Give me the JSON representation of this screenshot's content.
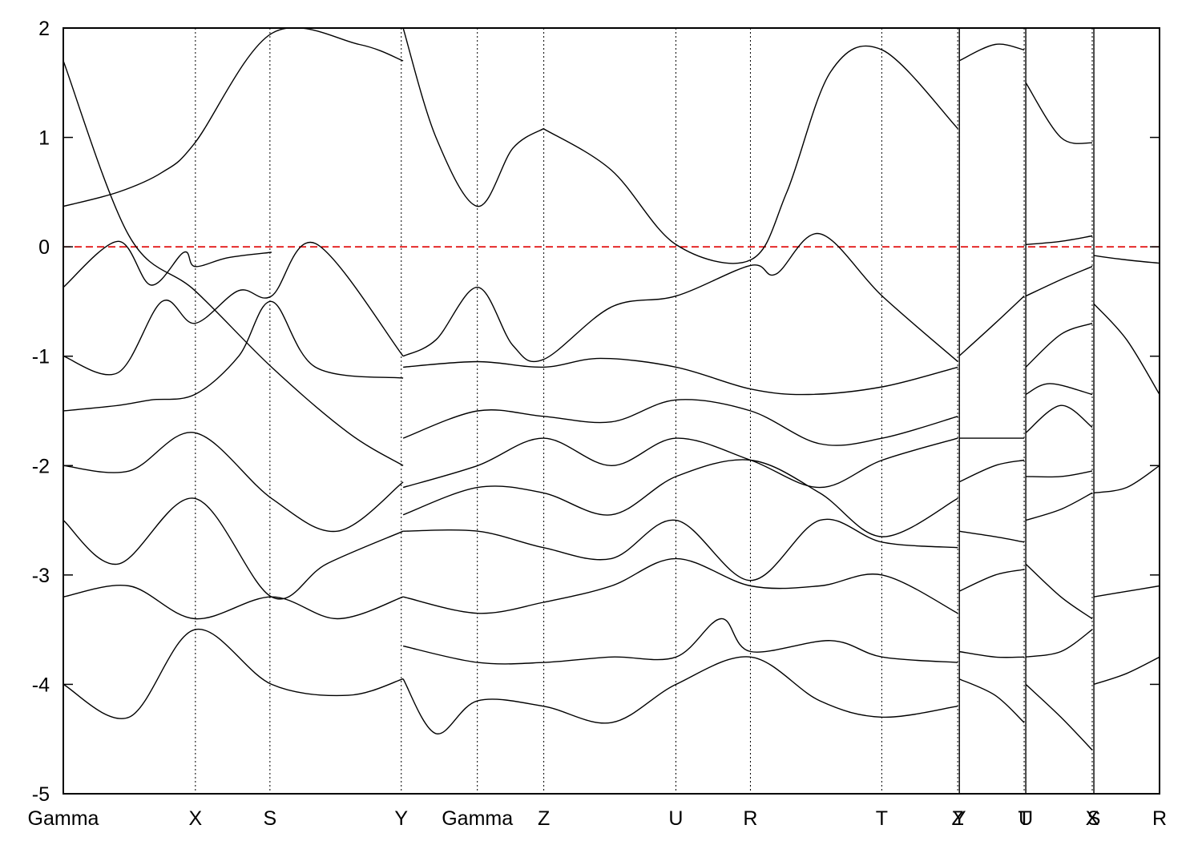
{
  "chart_data": {
    "type": "line",
    "title": "",
    "xlabel": "",
    "ylabel": "",
    "ylim": [
      -5,
      2
    ],
    "grid": "vertical dotted lines at high-symmetry points",
    "legend": "none",
    "fermi_level": {
      "value": 0,
      "color": "#e00000",
      "style": "dashed"
    },
    "y_ticks": [
      {
        "value": 2,
        "label": "2"
      },
      {
        "value": 1,
        "label": "1"
      },
      {
        "value": 0,
        "label": "0"
      },
      {
        "value": -1,
        "label": "-1"
      },
      {
        "value": -2,
        "label": "-2"
      },
      {
        "value": -3,
        "label": "-3"
      },
      {
        "value": -4,
        "label": "-4"
      },
      {
        "value": -5,
        "label": "-5"
      }
    ],
    "k_points": [
      {
        "label": "Gamma",
        "k": 0.0
      },
      {
        "label": "X",
        "k": 0.1205
      },
      {
        "label": "S",
        "k": 0.1885
      },
      {
        "label": "Y",
        "k": 0.3083
      },
      {
        "label": "Gamma",
        "k": 0.3777
      },
      {
        "label": "Z",
        "k": 0.4383
      },
      {
        "label": "U",
        "k": 0.5588
      },
      {
        "label": "R",
        "k": 0.6268
      },
      {
        "label": "T",
        "k": 0.7466
      },
      {
        "label": "Z",
        "k": 0.8159
      },
      {
        "label": "Y",
        "k": 0.8174
      },
      {
        "label": "T",
        "k": 0.8765
      },
      {
        "label": "U",
        "k": 0.878
      },
      {
        "label": "X",
        "k": 0.9386
      },
      {
        "label": "S",
        "k": 0.9401
      },
      {
        "label": "R",
        "k": 1.0
      }
    ],
    "segments": [
      {
        "path": "Gamma-X-S-Y-Gamma-Z-U-R-T-Z",
        "k_range": [
          0.0,
          0.8159
        ]
      },
      {
        "path": "Y-T",
        "k_range": [
          0.8174,
          0.8765
        ]
      },
      {
        "path": "U-X",
        "k_range": [
          0.878,
          0.9386
        ]
      },
      {
        "path": "S-R",
        "k_range": [
          0.9401,
          1.0
        ]
      }
    ],
    "series": [
      {
        "k": [
          0.0,
          0.06,
          0.12,
          0.19,
          0.26,
          0.31
        ],
        "energy": [
          1.7,
          0.1,
          -0.4,
          -1.1,
          -1.7,
          -2.0
        ]
      },
      {
        "k": [
          0.0,
          0.05,
          0.09,
          0.12,
          0.19,
          0.27,
          0.31
        ],
        "energy": [
          0.37,
          0.5,
          0.68,
          0.95,
          1.95,
          1.85,
          1.7
        ]
      },
      {
        "k": [
          0.0,
          0.05,
          0.08,
          0.11,
          0.12,
          0.15,
          0.19
        ],
        "energy": [
          -0.37,
          0.05,
          -0.35,
          -0.05,
          -0.18,
          -0.1,
          -0.05
        ]
      },
      {
        "k": [
          0.0,
          0.05,
          0.09,
          0.12,
          0.16,
          0.19,
          0.23,
          0.31
        ],
        "energy": [
          -1.0,
          -1.15,
          -0.5,
          -0.7,
          -0.4,
          -0.45,
          0.03,
          -1.0
        ]
      },
      {
        "k": [
          0.0,
          0.05,
          0.08,
          0.12,
          0.16,
          0.19,
          0.23,
          0.31
        ],
        "energy": [
          -1.5,
          -1.45,
          -1.4,
          -1.35,
          -1.0,
          -0.5,
          -1.1,
          -1.2
        ]
      },
      {
        "k": [
          0.0,
          0.06,
          0.12,
          0.19,
          0.25,
          0.31
        ],
        "energy": [
          -2.0,
          -2.05,
          -1.7,
          -2.3,
          -2.6,
          -2.15
        ]
      },
      {
        "k": [
          0.0,
          0.05,
          0.12,
          0.19,
          0.24,
          0.31
        ],
        "energy": [
          -2.5,
          -2.9,
          -2.3,
          -3.2,
          -2.9,
          -2.6
        ]
      },
      {
        "k": [
          0.0,
          0.06,
          0.12,
          0.19,
          0.25,
          0.31
        ],
        "energy": [
          -3.2,
          -3.1,
          -3.4,
          -3.2,
          -3.4,
          -3.2
        ]
      },
      {
        "k": [
          0.0,
          0.06,
          0.12,
          0.19,
          0.26,
          0.31
        ],
        "energy": [
          -4.0,
          -4.3,
          -3.5,
          -4.0,
          -4.1,
          -3.95
        ]
      },
      {
        "k": [
          0.31,
          0.34,
          0.378,
          0.41,
          0.438
        ],
        "energy": [
          2.0,
          1.0,
          0.37,
          0.9,
          1.08
        ]
      },
      {
        "k": [
          0.31,
          0.34,
          0.378,
          0.41,
          0.438,
          0.5,
          0.559,
          0.627,
          0.65,
          0.69,
          0.747,
          0.816
        ],
        "energy": [
          -1.0,
          -0.85,
          -0.37,
          -0.9,
          -1.03,
          -0.55,
          -0.45,
          -0.17,
          -0.25,
          0.12,
          -0.45,
          -1.05
        ]
      },
      {
        "k": [
          0.438,
          0.5,
          0.559,
          0.627,
          0.66,
          0.7,
          0.747,
          0.816
        ],
        "energy": [
          1.08,
          0.7,
          0.02,
          -0.12,
          0.5,
          1.6,
          1.8,
          1.08
        ]
      },
      {
        "k": [
          0.31,
          0.378,
          0.438,
          0.49,
          0.559,
          0.627,
          0.68,
          0.747,
          0.816
        ],
        "energy": [
          -1.1,
          -1.05,
          -1.1,
          -1.02,
          -1.1,
          -1.3,
          -1.35,
          -1.28,
          -1.1
        ]
      },
      {
        "k": [
          0.31,
          0.378,
          0.438,
          0.5,
          0.559,
          0.627,
          0.69,
          0.747,
          0.816
        ],
        "energy": [
          -1.75,
          -1.5,
          -1.55,
          -1.6,
          -1.4,
          -1.5,
          -1.8,
          -1.75,
          -1.55
        ]
      },
      {
        "k": [
          0.31,
          0.378,
          0.438,
          0.5,
          0.559,
          0.627,
          0.69,
          0.747,
          0.816
        ],
        "energy": [
          -2.2,
          -2.0,
          -1.75,
          -2.0,
          -1.75,
          -1.95,
          -2.2,
          -1.95,
          -1.75
        ]
      },
      {
        "k": [
          0.31,
          0.378,
          0.438,
          0.5,
          0.559,
          0.627,
          0.69,
          0.747,
          0.816
        ],
        "energy": [
          -2.45,
          -2.2,
          -2.25,
          -2.45,
          -2.1,
          -1.95,
          -2.25,
          -2.65,
          -2.3
        ]
      },
      {
        "k": [
          0.31,
          0.378,
          0.438,
          0.5,
          0.559,
          0.627,
          0.69,
          0.747,
          0.816
        ],
        "energy": [
          -2.6,
          -2.6,
          -2.75,
          -2.85,
          -2.5,
          -3.05,
          -2.5,
          -2.7,
          -2.75
        ]
      },
      {
        "k": [
          0.31,
          0.378,
          0.438,
          0.5,
          0.559,
          0.627,
          0.69,
          0.747,
          0.816
        ],
        "energy": [
          -3.2,
          -3.35,
          -3.25,
          -3.1,
          -2.85,
          -3.1,
          -3.1,
          -3.0,
          -3.35
        ]
      },
      {
        "k": [
          0.31,
          0.378,
          0.438,
          0.5,
          0.559,
          0.6,
          0.627,
          0.7,
          0.747,
          0.816
        ],
        "energy": [
          -3.65,
          -3.8,
          -3.8,
          -3.75,
          -3.75,
          -3.4,
          -3.7,
          -3.6,
          -3.75,
          -3.8
        ]
      },
      {
        "k": [
          0.31,
          0.34,
          0.378,
          0.438,
          0.5,
          0.559,
          0.627,
          0.69,
          0.747,
          0.816
        ],
        "energy": [
          -3.95,
          -4.45,
          -4.15,
          -4.2,
          -4.35,
          -4.0,
          -3.75,
          -4.15,
          -4.3,
          -4.2
        ]
      },
      {
        "k": [
          0.817,
          0.85,
          0.8765
        ],
        "energy": [
          1.7,
          1.85,
          1.8
        ]
      },
      {
        "k": [
          0.817,
          0.85,
          0.8765
        ],
        "energy": [
          -1.0,
          -0.7,
          -0.45
        ]
      },
      {
        "k": [
          0.817,
          0.85,
          0.8765
        ],
        "energy": [
          -1.75,
          -1.75,
          -1.75
        ]
      },
      {
        "k": [
          0.817,
          0.85,
          0.8765
        ],
        "energy": [
          -2.15,
          -2.0,
          -1.95
        ]
      },
      {
        "k": [
          0.817,
          0.85,
          0.8765
        ],
        "energy": [
          -2.6,
          -2.65,
          -2.7
        ]
      },
      {
        "k": [
          0.817,
          0.85,
          0.8765
        ],
        "energy": [
          -3.15,
          -3.0,
          -2.95
        ]
      },
      {
        "k": [
          0.817,
          0.85,
          0.8765
        ],
        "energy": [
          -3.7,
          -3.75,
          -3.75
        ]
      },
      {
        "k": [
          0.817,
          0.85,
          0.8765
        ],
        "energy": [
          -3.95,
          -4.1,
          -4.35
        ]
      },
      {
        "k": [
          0.878,
          0.91,
          0.9386
        ],
        "energy": [
          1.5,
          1.0,
          0.95
        ]
      },
      {
        "k": [
          0.878,
          0.91,
          0.9386
        ],
        "energy": [
          0.02,
          0.05,
          0.1
        ]
      },
      {
        "k": [
          0.878,
          0.91,
          0.9386
        ],
        "energy": [
          -0.45,
          -0.3,
          -0.18
        ]
      },
      {
        "k": [
          0.878,
          0.91,
          0.9386
        ],
        "energy": [
          -1.1,
          -0.8,
          -0.7
        ]
      },
      {
        "k": [
          0.878,
          0.9,
          0.9386
        ],
        "energy": [
          -1.35,
          -1.25,
          -1.35
        ]
      },
      {
        "k": [
          0.878,
          0.91,
          0.9386
        ],
        "energy": [
          -1.7,
          -1.45,
          -1.65
        ]
      },
      {
        "k": [
          0.878,
          0.91,
          0.9386
        ],
        "energy": [
          -2.1,
          -2.1,
          -2.05
        ]
      },
      {
        "k": [
          0.878,
          0.91,
          0.9386
        ],
        "energy": [
          -2.5,
          -2.4,
          -2.25
        ]
      },
      {
        "k": [
          0.878,
          0.91,
          0.9386
        ],
        "energy": [
          -2.9,
          -3.2,
          -3.4
        ]
      },
      {
        "k": [
          0.878,
          0.91,
          0.9386
        ],
        "energy": [
          -3.75,
          -3.7,
          -3.5
        ]
      },
      {
        "k": [
          0.878,
          0.91,
          0.9386
        ],
        "energy": [
          -4.0,
          -4.3,
          -4.6
        ]
      },
      {
        "k": [
          0.94,
          0.97,
          1.0
        ],
        "energy": [
          -0.08,
          -0.12,
          -0.15
        ]
      },
      {
        "k": [
          0.94,
          0.97,
          1.0
        ],
        "energy": [
          -0.52,
          -0.85,
          -1.35
        ]
      },
      {
        "k": [
          0.94,
          0.97,
          1.0
        ],
        "energy": [
          -2.25,
          -2.2,
          -2.0
        ]
      },
      {
        "k": [
          0.94,
          0.97,
          1.0
        ],
        "energy": [
          -3.2,
          -3.15,
          -3.1
        ]
      },
      {
        "k": [
          0.94,
          0.97,
          1.0
        ],
        "energy": [
          -4.0,
          -3.9,
          -3.75
        ]
      }
    ]
  }
}
